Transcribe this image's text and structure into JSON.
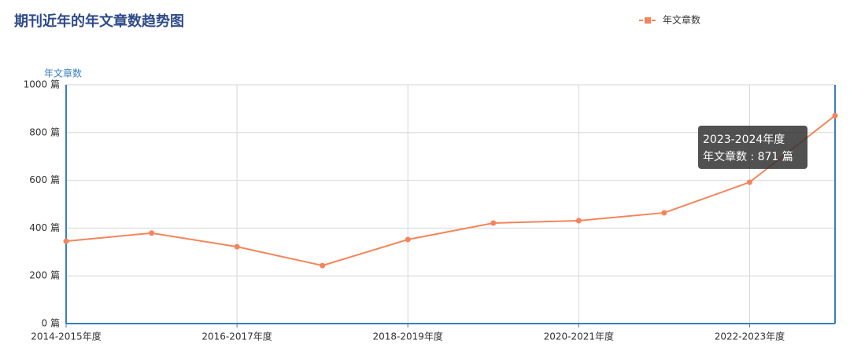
{
  "chart_data": {
    "type": "line",
    "title": "期刊近年的年文章数趋势图",
    "y_axis_label": "年文章数",
    "categories": [
      "2014-2015年度",
      null,
      "2016-2017年度",
      null,
      "2018-2019年度",
      null,
      "2020-2021年度",
      null,
      "2022-2023年度",
      null
    ],
    "series": [
      {
        "name": "年文章数",
        "color": "#f5845a",
        "values": [
          345,
          379,
          322,
          243,
          352,
          421,
          431,
          464,
          592,
          871
        ]
      }
    ],
    "ylim": [
      0,
      1000
    ],
    "yticks": [
      {
        "value": 0,
        "label": "0 篇"
      },
      {
        "value": 200,
        "label": "200 篇"
      },
      {
        "value": 400,
        "label": "400 篇"
      },
      {
        "value": 600,
        "label": "600 篇"
      },
      {
        "value": 800,
        "label": "800 篇"
      },
      {
        "value": 1000,
        "label": "1000 篇"
      }
    ],
    "grid": true,
    "legend": "top-right",
    "tooltip": {
      "title": "2023-2024年度",
      "text": "年文章数 : 871 篇"
    }
  }
}
